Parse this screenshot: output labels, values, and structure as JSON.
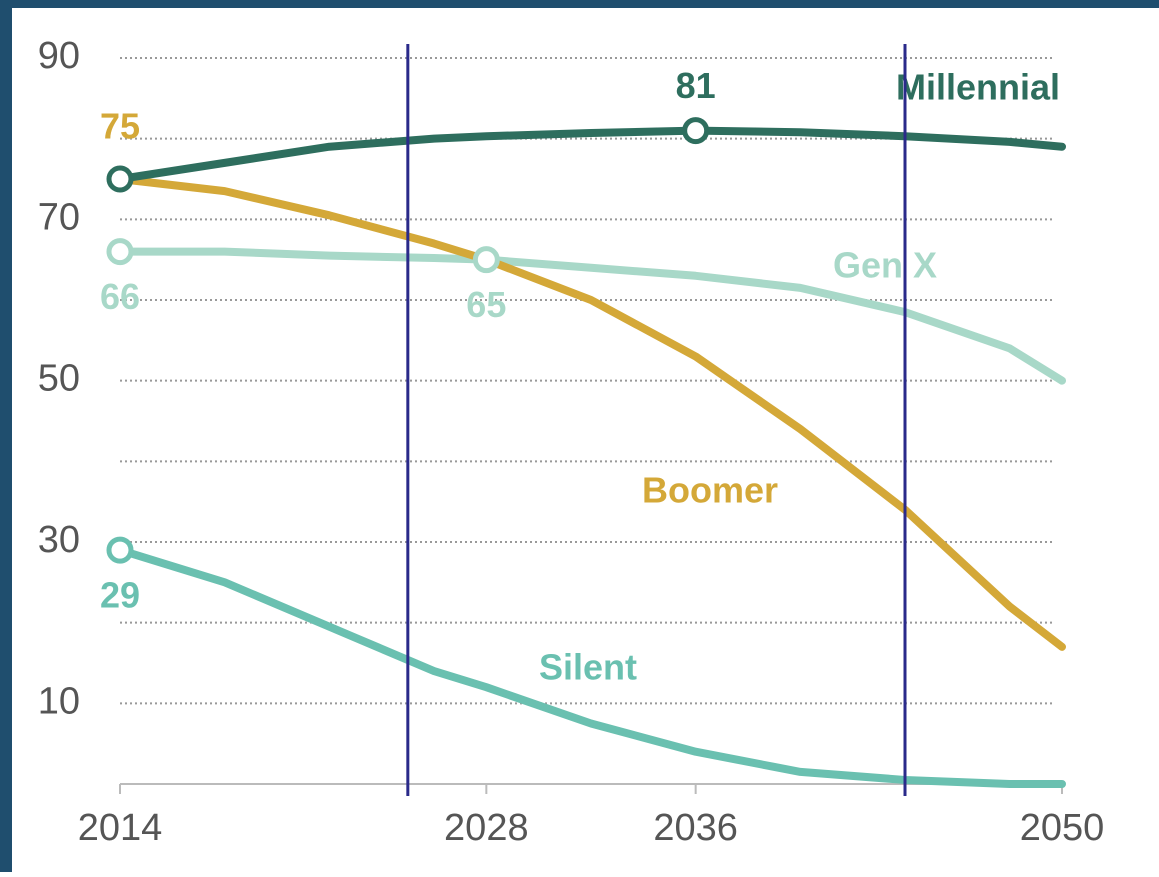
{
  "chart_data": {
    "type": "line",
    "x": [
      2014,
      2018,
      2022,
      2026,
      2028,
      2032,
      2036,
      2040,
      2044,
      2048,
      2050
    ],
    "xlim": [
      2014,
      2050
    ],
    "xticks": [
      2014,
      2028,
      2036,
      2050
    ],
    "ylim": [
      0,
      90
    ],
    "yticks": [
      10,
      30,
      50,
      70,
      90
    ],
    "minor_yticks": [
      20,
      40,
      60,
      80
    ],
    "grid": true,
    "vlines": [
      2025,
      2044
    ],
    "vline_color": "#2a2a8a",
    "series": [
      {
        "name": "Millennial",
        "color": "#2e6e5e",
        "values": [
          75,
          77,
          79,
          80,
          80.3,
          80.7,
          81,
          80.8,
          80.3,
          79.6,
          79
        ],
        "markers": [
          0,
          6
        ],
        "value_labels": [
          null,
          null,
          null,
          null,
          null,
          null,
          "81",
          null,
          null,
          null,
          null
        ]
      },
      {
        "name": "Gen X",
        "color": "#a8d8c8",
        "values": [
          66,
          66,
          65.5,
          65.2,
          65,
          64,
          63,
          61.5,
          58.5,
          54,
          50
        ],
        "markers": [
          0,
          4
        ],
        "value_labels": [
          "66",
          null,
          null,
          null,
          "65",
          null,
          null,
          null,
          null,
          null,
          null
        ]
      },
      {
        "name": "Boomer",
        "color": "#d4a838",
        "values": [
          75,
          73.5,
          70.5,
          67,
          65,
          60,
          53,
          44,
          34,
          22,
          17
        ],
        "markers": [],
        "value_labels": [
          "75",
          null,
          null,
          null,
          null,
          null,
          null,
          null,
          null,
          null,
          null
        ]
      },
      {
        "name": "Silent",
        "color": "#6ac0b0",
        "values": [
          29,
          25,
          19.5,
          14,
          12,
          7.5,
          4,
          1.5,
          0.5,
          0,
          0
        ],
        "markers": [
          0
        ],
        "value_labels": [
          "29",
          null,
          null,
          null,
          null,
          null,
          null,
          null,
          null,
          null,
          null
        ]
      }
    ]
  }
}
